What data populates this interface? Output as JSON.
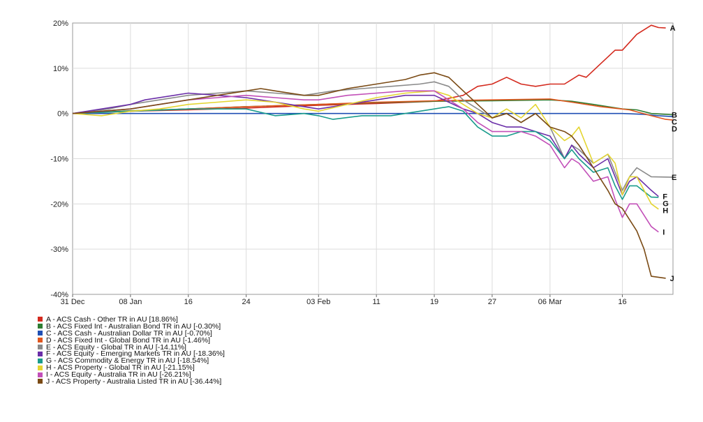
{
  "chart_data": {
    "type": "line",
    "ylim": [
      -40,
      20
    ],
    "y_ticks": [
      "20%",
      "10%",
      "0%",
      "-10%",
      "-20%",
      "-30%",
      "-40%"
    ],
    "y_tick_values": [
      20,
      10,
      0,
      -10,
      -20,
      -30,
      -40
    ],
    "x_ticks": [
      "31 Dec",
      "08 Jan",
      "16",
      "24",
      "03 Feb",
      "11",
      "19",
      "27",
      "06 Mar",
      "16"
    ],
    "x_tick_days": [
      0,
      8,
      16,
      24,
      34,
      42,
      50,
      58,
      66,
      76
    ],
    "x_range_days": [
      0,
      83
    ],
    "grid": true,
    "legend_placement": "bottom-left",
    "series": [
      {
        "name": "A - ACS Cash - Other TR in AU [18.86%]",
        "end_label": "A",
        "color": "#d42a1e",
        "points": [
          [
            0,
            0
          ],
          [
            3,
            0.3
          ],
          [
            8,
            0.5
          ],
          [
            16,
            0.8
          ],
          [
            24,
            1.2
          ],
          [
            34,
            1.8
          ],
          [
            42,
            2.2
          ],
          [
            50,
            2.7
          ],
          [
            54,
            4
          ],
          [
            56,
            6
          ],
          [
            58,
            6.5
          ],
          [
            60,
            8
          ],
          [
            62,
            6.5
          ],
          [
            64,
            6
          ],
          [
            66,
            6.5
          ],
          [
            68,
            6.5
          ],
          [
            70,
            8.5
          ],
          [
            71,
            8
          ],
          [
            73,
            11
          ],
          [
            75,
            14
          ],
          [
            76,
            14
          ],
          [
            78,
            17.5
          ],
          [
            80,
            19.5
          ],
          [
            81,
            19
          ],
          [
            82,
            18.9
          ]
        ]
      },
      {
        "name": "B - ACS Fixed Int - Australian Bond TR in AU [-0.30%]",
        "end_label": "B",
        "color": "#2f7d32",
        "points": [
          [
            0,
            0
          ],
          [
            8,
            0.6
          ],
          [
            16,
            1
          ],
          [
            24,
            1.5
          ],
          [
            34,
            2
          ],
          [
            42,
            2.4
          ],
          [
            50,
            2.7
          ],
          [
            58,
            2.8
          ],
          [
            66,
            3
          ],
          [
            69,
            2.7
          ],
          [
            72,
            2
          ],
          [
            76,
            1
          ],
          [
            78,
            0.8
          ],
          [
            80,
            0
          ],
          [
            83,
            -0.3
          ]
        ]
      },
      {
        "name": "C - ACS Cash - Australian Dollar TR in AU [-0.70%]",
        "end_label": "C",
        "color": "#1f4fb4",
        "points": [
          [
            0,
            0
          ],
          [
            20,
            0
          ],
          [
            40,
            0
          ],
          [
            60,
            0
          ],
          [
            70,
            0
          ],
          [
            76,
            0
          ],
          [
            79,
            -0.2
          ],
          [
            81,
            -0.5
          ],
          [
            83,
            -0.7
          ]
        ]
      },
      {
        "name": "D - ACS Fixed Int - Global Bond TR in AU [-1.46%]",
        "end_label": "D",
        "color": "#e0561e",
        "points": [
          [
            0,
            0
          ],
          [
            8,
            0.5
          ],
          [
            16,
            1
          ],
          [
            24,
            1.5
          ],
          [
            34,
            2
          ],
          [
            42,
            2.5
          ],
          [
            50,
            2.8
          ],
          [
            58,
            3
          ],
          [
            66,
            3.2
          ],
          [
            69,
            2.5
          ],
          [
            73,
            1.5
          ],
          [
            77,
            0.8
          ],
          [
            80,
            -0.5
          ],
          [
            82,
            -1.3
          ],
          [
            83,
            -1.46
          ]
        ]
      },
      {
        "name": "E - ACS Equity - Global TR in AU [-14.11%]",
        "end_label": "E",
        "color": "#8a8a8a",
        "points": [
          [
            0,
            0
          ],
          [
            5,
            1
          ],
          [
            8,
            2
          ],
          [
            12,
            3
          ],
          [
            16,
            4
          ],
          [
            20,
            4.5
          ],
          [
            24,
            5
          ],
          [
            28,
            4.5
          ],
          [
            32,
            4
          ],
          [
            36,
            5
          ],
          [
            40,
            5.5
          ],
          [
            44,
            6
          ],
          [
            48,
            6.5
          ],
          [
            50,
            7
          ],
          [
            52,
            6
          ],
          [
            54,
            3
          ],
          [
            56,
            1
          ],
          [
            58,
            -1
          ],
          [
            60,
            0
          ],
          [
            62,
            -2
          ],
          [
            64,
            0
          ],
          [
            66,
            -3
          ],
          [
            68,
            -10
          ],
          [
            69,
            -7
          ],
          [
            70,
            -8
          ],
          [
            72,
            -11
          ],
          [
            74,
            -9
          ],
          [
            75,
            -13
          ],
          [
            76,
            -17
          ],
          [
            77,
            -14
          ],
          [
            78,
            -12
          ],
          [
            80,
            -14
          ],
          [
            83,
            -14.1
          ]
        ]
      },
      {
        "name": "F - ACS Equity - Emerging Markets TR in AU [-18.36%]",
        "end_label": "F",
        "color": "#6a2ea8",
        "points": [
          [
            0,
            0
          ],
          [
            4,
            1
          ],
          [
            8,
            2
          ],
          [
            10,
            3
          ],
          [
            16,
            4.5
          ],
          [
            20,
            4
          ],
          [
            24,
            3.5
          ],
          [
            30,
            2
          ],
          [
            34,
            1
          ],
          [
            38,
            2
          ],
          [
            42,
            3
          ],
          [
            46,
            4
          ],
          [
            50,
            4
          ],
          [
            52,
            2.5
          ],
          [
            54,
            1
          ],
          [
            56,
            0
          ],
          [
            58,
            -2
          ],
          [
            60,
            -3
          ],
          [
            62,
            -3
          ],
          [
            64,
            -4
          ],
          [
            66,
            -5
          ],
          [
            68,
            -10
          ],
          [
            69,
            -7
          ],
          [
            70,
            -9
          ],
          [
            72,
            -12
          ],
          [
            74,
            -10
          ],
          [
            75,
            -14
          ],
          [
            76,
            -18
          ],
          [
            77,
            -15
          ],
          [
            78,
            -14
          ],
          [
            80,
            -17
          ],
          [
            81,
            -18.36
          ]
        ]
      },
      {
        "name": "G - ACS Commodity & Energy TR in AU [-18.54%]",
        "end_label": "G",
        "color": "#1a9c8c",
        "points": [
          [
            0,
            0
          ],
          [
            8,
            0.5
          ],
          [
            16,
            1
          ],
          [
            24,
            1
          ],
          [
            28,
            -0.5
          ],
          [
            32,
            0
          ],
          [
            34,
            -0.5
          ],
          [
            36,
            -1.3
          ],
          [
            40,
            -0.5
          ],
          [
            44,
            -0.5
          ],
          [
            48,
            0.5
          ],
          [
            50,
            1
          ],
          [
            52,
            1.5
          ],
          [
            54,
            0.5
          ],
          [
            56,
            -3
          ],
          [
            58,
            -5
          ],
          [
            60,
            -5
          ],
          [
            62,
            -4
          ],
          [
            64,
            -4
          ],
          [
            66,
            -6
          ],
          [
            68,
            -10
          ],
          [
            69,
            -8
          ],
          [
            70,
            -10
          ],
          [
            72,
            -13
          ],
          [
            74,
            -12
          ],
          [
            75,
            -16
          ],
          [
            76,
            -19
          ],
          [
            77,
            -16
          ],
          [
            78,
            -16
          ],
          [
            80,
            -18.5
          ],
          [
            81,
            -18.54
          ]
        ]
      },
      {
        "name": "H - ACS Property - Global TR in AU [-21.15%]",
        "end_label": "H",
        "color": "#e4d531",
        "points": [
          [
            0,
            0
          ],
          [
            4,
            -0.5
          ],
          [
            8,
            0.5
          ],
          [
            12,
            1
          ],
          [
            16,
            2
          ],
          [
            20,
            2.5
          ],
          [
            24,
            3
          ],
          [
            28,
            2.5
          ],
          [
            32,
            1
          ],
          [
            34,
            0.5
          ],
          [
            38,
            2
          ],
          [
            42,
            3.5
          ],
          [
            46,
            4.5
          ],
          [
            50,
            5
          ],
          [
            52,
            4
          ],
          [
            54,
            2
          ],
          [
            56,
            0
          ],
          [
            58,
            -1
          ],
          [
            60,
            1
          ],
          [
            62,
            -1
          ],
          [
            64,
            2
          ],
          [
            66,
            -3
          ],
          [
            68,
            -6
          ],
          [
            69,
            -5
          ],
          [
            70,
            -3
          ],
          [
            72,
            -11
          ],
          [
            74,
            -9
          ],
          [
            75,
            -11
          ],
          [
            76,
            -18
          ],
          [
            77,
            -14
          ],
          [
            78,
            -14
          ],
          [
            80,
            -20
          ],
          [
            81,
            -21.15
          ]
        ]
      },
      {
        "name": "I - ACS Equity - Australia TR in AU [-26.21%]",
        "end_label": "I",
        "color": "#c24fb8",
        "points": [
          [
            0,
            0
          ],
          [
            8,
            1
          ],
          [
            12,
            2
          ],
          [
            16,
            3
          ],
          [
            20,
            3.5
          ],
          [
            24,
            4
          ],
          [
            28,
            3.5
          ],
          [
            32,
            3
          ],
          [
            34,
            3
          ],
          [
            38,
            4
          ],
          [
            42,
            4.5
          ],
          [
            46,
            5
          ],
          [
            50,
            5
          ],
          [
            52,
            3
          ],
          [
            54,
            1
          ],
          [
            56,
            -2
          ],
          [
            58,
            -4
          ],
          [
            60,
            -4
          ],
          [
            62,
            -4
          ],
          [
            64,
            -5
          ],
          [
            66,
            -7
          ],
          [
            68,
            -12
          ],
          [
            69,
            -10
          ],
          [
            70,
            -11
          ],
          [
            72,
            -15
          ],
          [
            74,
            -14
          ],
          [
            75,
            -19
          ],
          [
            76,
            -23
          ],
          [
            77,
            -20
          ],
          [
            78,
            -20
          ],
          [
            80,
            -25
          ],
          [
            81,
            -26.21
          ]
        ]
      },
      {
        "name": "J - ACS Property - Australia Listed TR in AU [-36.44%]",
        "end_label": "J",
        "color": "#7a4a14",
        "points": [
          [
            0,
            0
          ],
          [
            4,
            0.5
          ],
          [
            8,
            1
          ],
          [
            12,
            2
          ],
          [
            16,
            3
          ],
          [
            20,
            4
          ],
          [
            24,
            5
          ],
          [
            26,
            5.5
          ],
          [
            28,
            5
          ],
          [
            32,
            4
          ],
          [
            34,
            4
          ],
          [
            38,
            5.5
          ],
          [
            42,
            6.5
          ],
          [
            46,
            7.5
          ],
          [
            48,
            8.5
          ],
          [
            50,
            9
          ],
          [
            52,
            8
          ],
          [
            54,
            5
          ],
          [
            56,
            2
          ],
          [
            58,
            -1
          ],
          [
            60,
            0
          ],
          [
            62,
            -2
          ],
          [
            64,
            0
          ],
          [
            66,
            -3
          ],
          [
            68,
            -4
          ],
          [
            69,
            -5
          ],
          [
            70,
            -7
          ],
          [
            72,
            -12
          ],
          [
            74,
            -17
          ],
          [
            75,
            -20
          ],
          [
            76,
            -21
          ],
          [
            78,
            -26
          ],
          [
            79,
            -30
          ],
          [
            80,
            -36
          ],
          [
            82,
            -36.44
          ]
        ]
      }
    ]
  }
}
